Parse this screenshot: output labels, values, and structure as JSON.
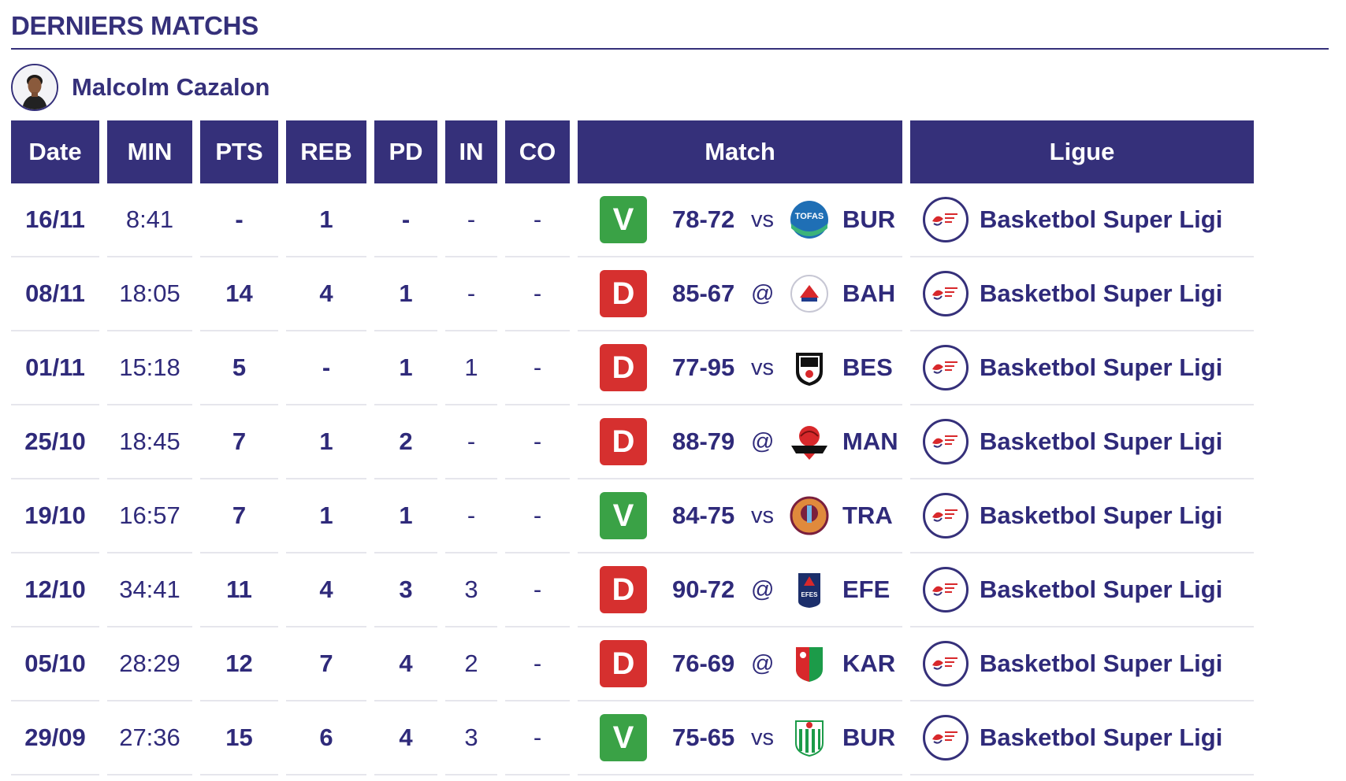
{
  "section": {
    "title": "DERNIERS MATCHS"
  },
  "player": {
    "name": "Malcolm Cazalon"
  },
  "columns": [
    "Date",
    "MIN",
    "PTS",
    "REB",
    "PD",
    "IN",
    "CO",
    "Match",
    "Ligue"
  ],
  "colors": {
    "primary": "#35307a",
    "win": "#3aa246",
    "loss": "#d6302f"
  },
  "rows": [
    {
      "date": "16/11",
      "min": "8:41",
      "pts": "-",
      "reb": "1",
      "pd": "-",
      "in": "-",
      "co": "-",
      "result": "V",
      "score": "78-72",
      "venue": "vs",
      "opponent": "BUR",
      "logo": "tofas-logo-icon",
      "league": "Basketbol Super Ligi"
    },
    {
      "date": "08/11",
      "min": "18:05",
      "pts": "14",
      "reb": "4",
      "pd": "1",
      "in": "-",
      "co": "-",
      "result": "D",
      "score": "85-67",
      "venue": "@",
      "opponent": "BAH",
      "logo": "bahcesehir-logo-icon",
      "league": "Basketbol Super Ligi"
    },
    {
      "date": "01/11",
      "min": "15:18",
      "pts": "5",
      "reb": "-",
      "pd": "1",
      "in": "1",
      "co": "-",
      "result": "D",
      "score": "77-95",
      "venue": "vs",
      "opponent": "BES",
      "logo": "besiktas-logo-icon",
      "league": "Basketbol Super Ligi"
    },
    {
      "date": "25/10",
      "min": "18:45",
      "pts": "7",
      "reb": "1",
      "pd": "2",
      "in": "-",
      "co": "-",
      "result": "D",
      "score": "88-79",
      "venue": "@",
      "opponent": "MAN",
      "logo": "manisa-logo-icon",
      "league": "Basketbol Super Ligi"
    },
    {
      "date": "19/10",
      "min": "16:57",
      "pts": "7",
      "reb": "1",
      "pd": "1",
      "in": "-",
      "co": "-",
      "result": "V",
      "score": "84-75",
      "venue": "vs",
      "opponent": "TRA",
      "logo": "trabzonspor-logo-icon",
      "league": "Basketbol Super Ligi"
    },
    {
      "date": "12/10",
      "min": "34:41",
      "pts": "11",
      "reb": "4",
      "pd": "3",
      "in": "3",
      "co": "-",
      "result": "D",
      "score": "90-72",
      "venue": "@",
      "opponent": "EFE",
      "logo": "anadolu-efes-logo-icon",
      "league": "Basketbol Super Ligi"
    },
    {
      "date": "05/10",
      "min": "28:29",
      "pts": "12",
      "reb": "7",
      "pd": "4",
      "in": "2",
      "co": "-",
      "result": "D",
      "score": "76-69",
      "venue": "@",
      "opponent": "KAR",
      "logo": "karsiyaka-logo-icon",
      "league": "Basketbol Super Ligi"
    },
    {
      "date": "29/09",
      "min": "27:36",
      "pts": "15",
      "reb": "6",
      "pd": "4",
      "in": "3",
      "co": "-",
      "result": "V",
      "score": "75-65",
      "venue": "vs",
      "opponent": "BUR",
      "logo": "bursaspor-logo-icon",
      "league": "Basketbol Super Ligi"
    }
  ]
}
